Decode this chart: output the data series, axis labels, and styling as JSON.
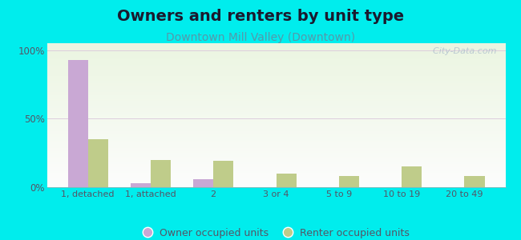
{
  "title": "Owners and renters by unit type",
  "subtitle": "Downtown Mill Valley (Downtown)",
  "categories": [
    "1, detached",
    "1, attached",
    "2",
    "3 or 4",
    "5 to 9",
    "10 to 19",
    "20 to 49"
  ],
  "owner_values": [
    93,
    3,
    6,
    0,
    0,
    0,
    0
  ],
  "renter_values": [
    35,
    20,
    19,
    10,
    8,
    15,
    8
  ],
  "owner_color": "#c9a8d4",
  "renter_color": "#bfcc8a",
  "background_outer": "#00eded",
  "title_fontsize": 14,
  "subtitle_fontsize": 10,
  "ylabel_ticks": [
    "0%",
    "50%",
    "100%"
  ],
  "ytick_vals": [
    0,
    50,
    100
  ],
  "ylim": [
    0,
    105
  ],
  "legend_labels": [
    "Owner occupied units",
    "Renter occupied units"
  ],
  "bar_width": 0.32,
  "watermark": "  City-Data.com",
  "title_color": "#1a1a2e",
  "subtitle_color": "#5599aa",
  "tick_color": "#555566",
  "grid_color": "#ddccdd"
}
